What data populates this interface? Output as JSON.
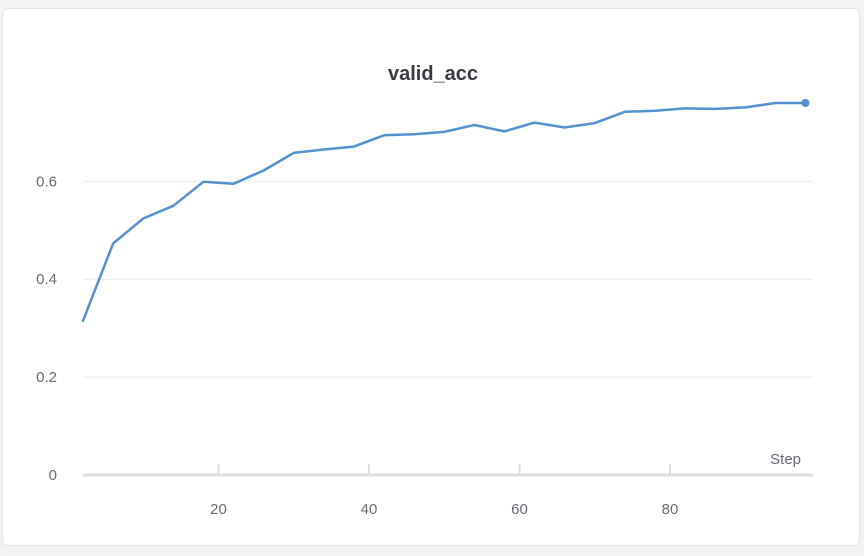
{
  "chart_data": {
    "type": "line",
    "title": "valid_acc",
    "xlabel": "Step",
    "ylabel": "",
    "xlim": [
      2,
      99
    ],
    "ylim": [
      0,
      0.76
    ],
    "x_ticks": [
      20,
      40,
      60,
      80
    ],
    "y_ticks": [
      0,
      0.2,
      0.4,
      0.6
    ],
    "x_tick_labels": [
      "20",
      "40",
      "60",
      "80"
    ],
    "y_tick_labels": [
      "0",
      "0.2",
      "0.4",
      "0.6"
    ],
    "grid": true,
    "legend": "none",
    "series": [
      {
        "color": "#5590cf",
        "x": [
          2,
          6,
          10,
          14,
          18,
          22,
          26,
          30,
          34,
          38,
          42,
          46,
          50,
          54,
          58,
          62,
          66,
          70,
          74,
          78,
          82,
          86,
          90,
          94,
          98
        ],
        "y": [
          0.315,
          0.473,
          0.524,
          0.55,
          0.599,
          0.595,
          0.622,
          0.658,
          0.665,
          0.671,
          0.694,
          0.696,
          0.701,
          0.715,
          0.702,
          0.72,
          0.71,
          0.719,
          0.742,
          0.744,
          0.749,
          0.748,
          0.751,
          0.76,
          0.76
        ]
      }
    ]
  }
}
